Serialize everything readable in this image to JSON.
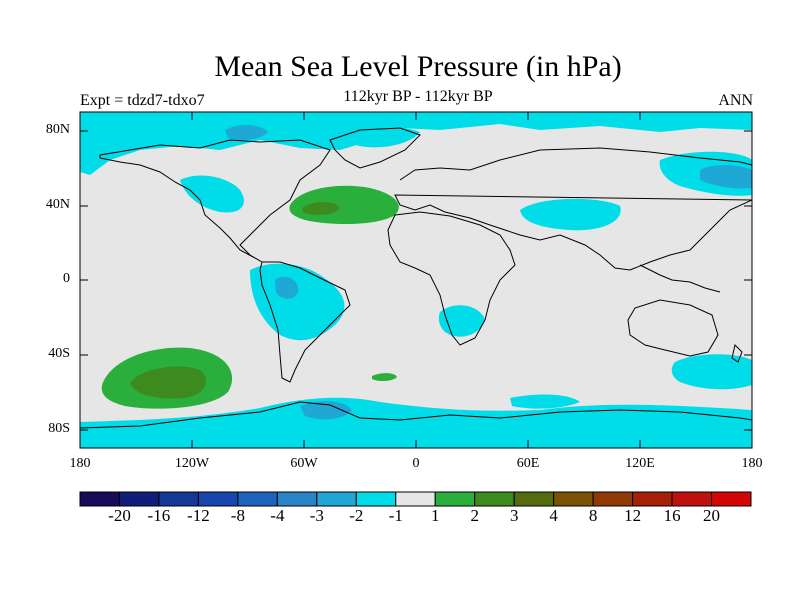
{
  "title": "Mean Sea Level Pressure (in hPa)",
  "left_label": "Expt = tdzd7-tdxo7",
  "center_label": "112kyr BP - 112kyr BP",
  "right_label": "ANN",
  "lat_ticks": [
    "80N",
    "40N",
    "0",
    "40S",
    "80S"
  ],
  "lon_ticks": [
    "180",
    "120W",
    "60W",
    "0",
    "60E",
    "120E",
    "180"
  ],
  "colorbar": {
    "colors": [
      "#1a0a5a",
      "#0f1e7a",
      "#133896",
      "#1747ae",
      "#1e63bd",
      "#2a84c8",
      "#1fa8d6",
      "#00dde8",
      "#e6e6e6",
      "#2aae3c",
      "#3d8a1f",
      "#556b0f",
      "#7a5205",
      "#8f3a05",
      "#a62008",
      "#bf1010",
      "#d40505"
    ],
    "labels": [
      "-20",
      "-16",
      "-12",
      "-8",
      "-4",
      "-3",
      "-2",
      "-1",
      "1",
      "2",
      "3",
      "4",
      "8",
      "12",
      "16",
      "20"
    ]
  },
  "colors": {
    "neutral": "#e6e6e6",
    "light_neg": "#00dde8",
    "mid_neg": "#1fa8d6",
    "light_pos": "#2aae3c",
    "mid_pos": "#3d8a1f",
    "coast": "#000000"
  }
}
